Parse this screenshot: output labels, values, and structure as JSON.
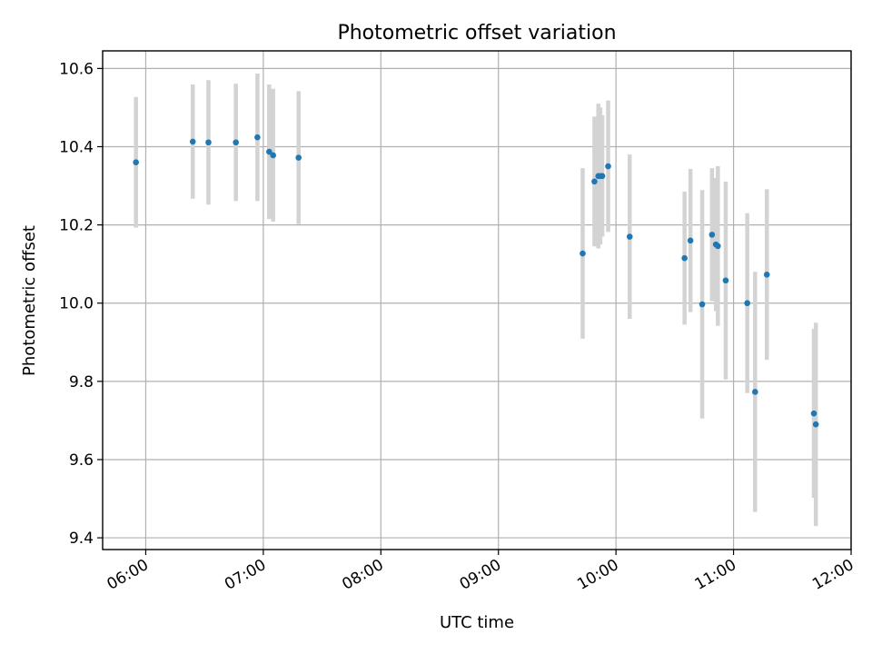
{
  "chart_data": {
    "type": "scatter",
    "title": "Photometric offset variation",
    "xlabel": "UTC time",
    "ylabel": "Photometric offset",
    "grid": true,
    "xlim": [
      "05:38",
      "12:00"
    ],
    "ylim": [
      9.37,
      10.645
    ],
    "x_ticks": [
      "06:00",
      "07:00",
      "08:00",
      "09:00",
      "10:00",
      "11:00",
      "12:00"
    ],
    "y_ticks": [
      9.4,
      9.6,
      9.8,
      10.0,
      10.2,
      10.4,
      10.6
    ],
    "y_tick_labels": [
      "9.4",
      "9.6",
      "9.8",
      "10.0",
      "10.2",
      "10.4",
      "10.6"
    ],
    "colors": {
      "points": "#1f77b4",
      "errorbars": "#d3d3d3",
      "grid": "#b0b0b0"
    },
    "series": [
      {
        "points": [
          {
            "t": "05:55",
            "y": 10.36,
            "yerr": 0.167
          },
          {
            "t": "06:24",
            "y": 10.413,
            "yerr": 0.146
          },
          {
            "t": "06:32",
            "y": 10.411,
            "yerr": 0.159
          },
          {
            "t": "06:46",
            "y": 10.411,
            "yerr": 0.15
          },
          {
            "t": "06:57",
            "y": 10.424,
            "yerr": 0.163
          },
          {
            "t": "07:03",
            "y": 10.387,
            "yerr": 0.172
          },
          {
            "t": "07:05",
            "y": 10.378,
            "yerr": 0.17
          },
          {
            "t": "07:18",
            "y": 10.372,
            "yerr": 0.17
          },
          {
            "t": "09:43",
            "y": 10.127,
            "yerr": 0.218
          },
          {
            "t": "09:49",
            "y": 10.311,
            "yerr": 0.166
          },
          {
            "t": "09:51",
            "y": 10.325,
            "yerr": 0.185
          },
          {
            "t": "09:52",
            "y": 10.325,
            "yerr": 0.175
          },
          {
            "t": "09:53",
            "y": 10.325,
            "yerr": 0.155
          },
          {
            "t": "09:56",
            "y": 10.35,
            "yerr": 0.168
          },
          {
            "t": "10:07",
            "y": 10.17,
            "yerr": 0.21
          },
          {
            "t": "10:35",
            "y": 10.115,
            "yerr": 0.17
          },
          {
            "t": "10:38",
            "y": 10.16,
            "yerr": 0.183
          },
          {
            "t": "10:44",
            "y": 9.997,
            "yerr": 0.292
          },
          {
            "t": "10:49",
            "y": 10.175,
            "yerr": 0.17
          },
          {
            "t": "10:51",
            "y": 10.15,
            "yerr": 0.17
          },
          {
            "t": "10:52",
            "y": 10.146,
            "yerr": 0.204
          },
          {
            "t": "10:56",
            "y": 10.058,
            "yerr": 0.253
          },
          {
            "t": "11:07",
            "y": 10.0,
            "yerr": 0.23
          },
          {
            "t": "11:11",
            "y": 9.773,
            "yerr": 0.307
          },
          {
            "t": "11:17",
            "y": 10.073,
            "yerr": 0.218
          },
          {
            "t": "11:41",
            "y": 9.718,
            "yerr": 0.216
          },
          {
            "t": "11:42",
            "y": 9.69,
            "yerr": 0.26
          }
        ]
      }
    ]
  }
}
